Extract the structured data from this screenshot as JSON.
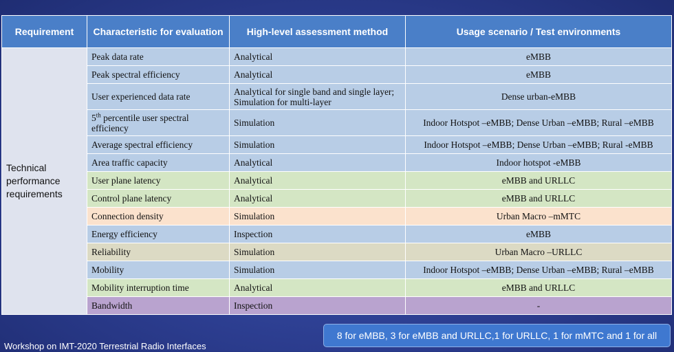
{
  "headers": {
    "requirement": "Requirement",
    "characteristic": "Characteristic for evaluation",
    "method": "High-level assessment method",
    "scenario": "Usage scenario / Test environments"
  },
  "requirement_group": "Technical performance requirements",
  "rows": [
    {
      "characteristic": "Peak data rate",
      "method": "Analytical",
      "scenario": "eMBB",
      "color": "blue"
    },
    {
      "characteristic": "Peak spectral efficiency",
      "method": "Analytical",
      "scenario": "eMBB",
      "color": "blue"
    },
    {
      "characteristic": "User experienced data rate",
      "method": "Analytical for single band and single layer; Simulation for multi-layer",
      "scenario": "Dense urban-eMBB",
      "color": "blue"
    },
    {
      "characteristic_prefix": "5",
      "characteristic_sup": "th",
      "characteristic": " percentile user spectral efficiency",
      "method": "Simulation",
      "scenario": "Indoor Hotspot –eMBB; Dense Urban –eMBB; Rural –eMBB",
      "color": "blue"
    },
    {
      "characteristic": "Average spectral efficiency",
      "method": "Simulation",
      "scenario": "Indoor Hotspot –eMBB; Dense Urban –eMBB; Rural -eMBB",
      "color": "blue"
    },
    {
      "characteristic": "Area traffic capacity",
      "method": "Analytical",
      "scenario": "Indoor hotspot -eMBB",
      "color": "blue"
    },
    {
      "characteristic": "User plane latency",
      "method": "Analytical",
      "scenario": "eMBB and URLLC",
      "color": "green"
    },
    {
      "characteristic": "Control plane latency",
      "method": "Analytical",
      "scenario": "eMBB and URLLC",
      "color": "green"
    },
    {
      "characteristic": "Connection density",
      "method": "Simulation",
      "scenario": "Urban Macro –mMTC",
      "color": "peach"
    },
    {
      "characteristic": "Energy efficiency",
      "method": "Inspection",
      "scenario": "eMBB",
      "color": "blue"
    },
    {
      "characteristic": "Reliability",
      "method": "Simulation",
      "scenario": "Urban Macro –URLLC",
      "color": "tan"
    },
    {
      "characteristic": "Mobility",
      "method": "Simulation",
      "scenario": "Indoor Hotspot –eMBB; Dense Urban –eMBB; Rural –eMBB",
      "color": "blue"
    },
    {
      "characteristic": "Mobility interruption time",
      "method": "Analytical",
      "scenario": "eMBB and URLLC",
      "color": "green"
    },
    {
      "characteristic": "Bandwidth",
      "method": "Inspection",
      "scenario": "-",
      "color": "purple"
    }
  ],
  "footer": "Workshop on IMT-2020 Terrestrial Radio Interfaces",
  "summary": "8 for eMBB, 3 for eMBB and URLLC,1 for URLLC, 1 for mMTC and 1 for all",
  "colors": {
    "header": "#4a7fc8",
    "blue": "#b8cde6",
    "green": "#d4e6c4",
    "peach": "#fbe2cd",
    "tan": "#dcdac4",
    "purple": "#b9a3cf",
    "background": "#2f3f8c"
  }
}
